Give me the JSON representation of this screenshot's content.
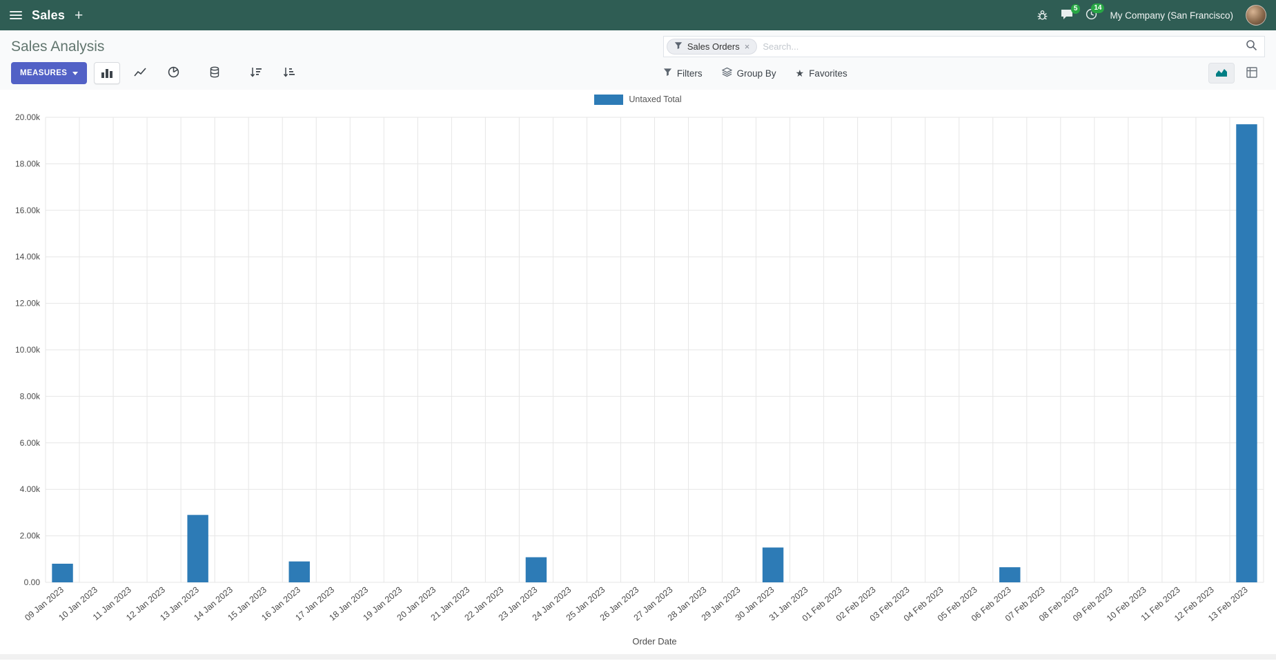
{
  "navbar": {
    "app_name": "Sales",
    "company": "My Company (San Francisco)",
    "messages_badge": "5",
    "activities_badge": "14"
  },
  "icons": {
    "plus": "+",
    "close": "×",
    "star": "★"
  },
  "control_panel": {
    "breadcrumb": "Sales Analysis",
    "measures_label": "MEASURES",
    "search": {
      "facet_label": "Sales Orders",
      "placeholder": "Search..."
    },
    "filters_label": "Filters",
    "group_by_label": "Group By",
    "favorites_label": "Favorites"
  },
  "chart_data": {
    "type": "bar",
    "title": "",
    "xlabel": "Order Date",
    "ylabel": "",
    "ylim": [
      0,
      20000
    ],
    "yticks": [
      0,
      2000,
      4000,
      6000,
      8000,
      10000,
      12000,
      14000,
      16000,
      18000,
      20000
    ],
    "ytick_labels": [
      "0.00",
      "2.00k",
      "4.00k",
      "6.00k",
      "8.00k",
      "10.00k",
      "12.00k",
      "14.00k",
      "16.00k",
      "18.00k",
      "20.00k"
    ],
    "grid": true,
    "legend_position": "top",
    "categories": [
      "09 Jan 2023",
      "10 Jan 2023",
      "11 Jan 2023",
      "12 Jan 2023",
      "13 Jan 2023",
      "14 Jan 2023",
      "15 Jan 2023",
      "16 Jan 2023",
      "17 Jan 2023",
      "18 Jan 2023",
      "19 Jan 2023",
      "20 Jan 2023",
      "21 Jan 2023",
      "22 Jan 2023",
      "23 Jan 2023",
      "24 Jan 2023",
      "25 Jan 2023",
      "26 Jan 2023",
      "27 Jan 2023",
      "28 Jan 2023",
      "29 Jan 2023",
      "30 Jan 2023",
      "31 Jan 2023",
      "01 Feb 2023",
      "02 Feb 2023",
      "03 Feb 2023",
      "04 Feb 2023",
      "05 Feb 2023",
      "06 Feb 2023",
      "07 Feb 2023",
      "08 Feb 2023",
      "09 Feb 2023",
      "10 Feb 2023",
      "11 Feb 2023",
      "12 Feb 2023",
      "13 Feb 2023"
    ],
    "series": [
      {
        "name": "Untaxed Total",
        "color": "#2D7BB6",
        "values": [
          800,
          0,
          0,
          0,
          2900,
          0,
          0,
          900,
          0,
          0,
          0,
          0,
          0,
          0,
          1080,
          0,
          0,
          0,
          0,
          0,
          0,
          1500,
          0,
          0,
          0,
          0,
          0,
          0,
          650,
          0,
          0,
          0,
          0,
          0,
          0,
          19700
        ]
      }
    ]
  }
}
